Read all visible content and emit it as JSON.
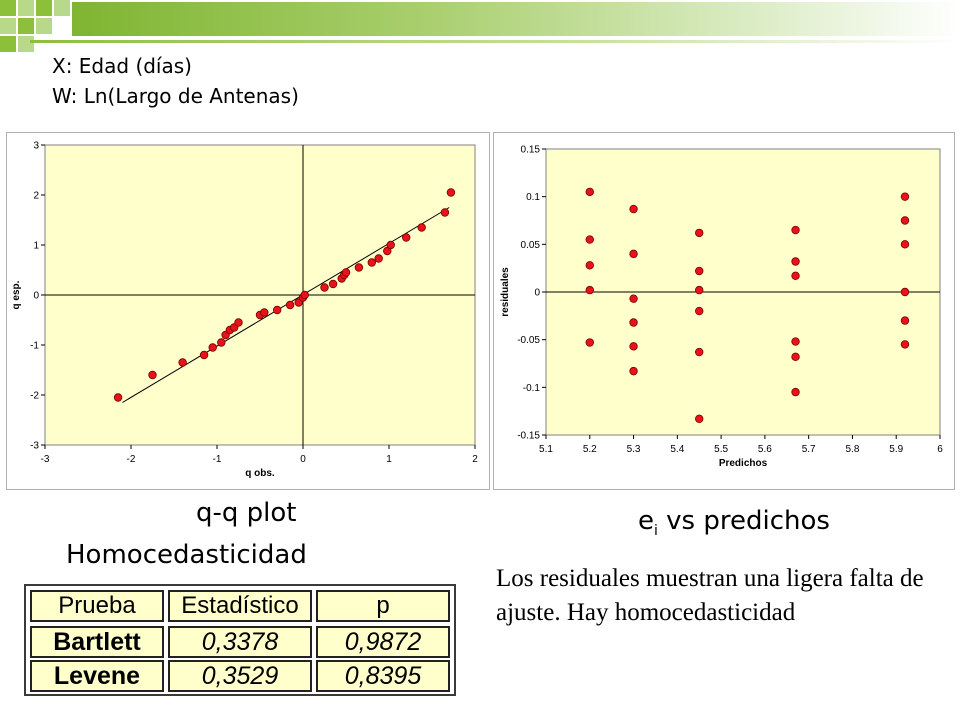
{
  "header": {
    "line1": "X: Edad (días)",
    "line2": "W: Ln(Largo de Antenas)"
  },
  "captions": {
    "qq": "q-q plot",
    "resid_main": "e",
    "resid_sub": "i",
    "resid_rest": " vs predichos",
    "homoc": "Homocedasticidad"
  },
  "body_text": "Los residuales muestran una ligera falta de ajuste. Hay homocedasticidad",
  "table": {
    "headers": [
      "Prueba",
      "Estadístico",
      "p"
    ],
    "rows": [
      [
        "Bartlett",
        "0,3378",
        "0,9872"
      ],
      [
        "Levene",
        "0,3529",
        "0,8395"
      ]
    ]
  },
  "colors": {
    "plot_bg": "#ffffcc",
    "point": "#e8121a",
    "header_squares": "#8cbf3a"
  },
  "chart_data": [
    {
      "type": "scatter",
      "title": "",
      "xlabel": "q obs.",
      "ylabel": "q esp.",
      "xlim": [
        -3,
        2
      ],
      "ylim": [
        -3,
        3
      ],
      "xticks": [
        "-3",
        "-2",
        "-1",
        "0",
        "1",
        "2"
      ],
      "yticks": [
        "-3",
        "-2",
        "-1",
        "0",
        "1",
        "2",
        "3"
      ],
      "grid": false,
      "reference_line": {
        "x": [
          -2.1,
          1.7
        ],
        "y": [
          -2.15,
          1.75
        ]
      },
      "points": {
        "x": [
          -2.15,
          -1.75,
          -1.4,
          -1.15,
          -1.05,
          -0.95,
          -0.9,
          -0.85,
          -0.8,
          -0.75,
          -0.5,
          -0.45,
          -0.3,
          -0.15,
          -0.05,
          0.0,
          0.02,
          0.25,
          0.35,
          0.45,
          0.48,
          0.5,
          0.65,
          0.8,
          0.88,
          0.98,
          1.02,
          1.2,
          1.38,
          1.65,
          1.72
        ],
        "y": [
          -2.05,
          -1.6,
          -1.35,
          -1.2,
          -1.05,
          -0.95,
          -0.8,
          -0.7,
          -0.65,
          -0.55,
          -0.4,
          -0.35,
          -0.3,
          -0.2,
          -0.15,
          -0.05,
          0.0,
          0.15,
          0.22,
          0.33,
          0.4,
          0.45,
          0.55,
          0.65,
          0.73,
          0.88,
          1.0,
          1.15,
          1.35,
          1.65,
          2.05
        ]
      }
    },
    {
      "type": "scatter",
      "title": "",
      "xlabel": "Predichos",
      "ylabel": "residuales",
      "xlim": [
        5.1,
        6
      ],
      "ylim": [
        -0.15,
        0.15
      ],
      "xticks": [
        "5.1",
        "5.2",
        "5.3",
        "5.4",
        "5.5",
        "5.6",
        "5.7",
        "5.8",
        "5.9",
        "6"
      ],
      "yticks": [
        "0.15",
        "0.1",
        "0.05",
        "0",
        "-0.05",
        "-0.1",
        "-0.15"
      ],
      "grid": false,
      "points": {
        "x": [
          5.2,
          5.2,
          5.2,
          5.2,
          5.2,
          5.3,
          5.3,
          5.3,
          5.3,
          5.3,
          5.3,
          5.45,
          5.45,
          5.45,
          5.45,
          5.45,
          5.45,
          5.67,
          5.67,
          5.67,
          5.67,
          5.67,
          5.67,
          5.92,
          5.92,
          5.92,
          5.92,
          5.92,
          5.92
        ],
        "y": [
          0.105,
          0.055,
          0.028,
          0.002,
          -0.053,
          0.087,
          0.04,
          -0.007,
          -0.032,
          -0.057,
          -0.083,
          0.062,
          0.022,
          0.002,
          -0.02,
          -0.063,
          -0.133,
          0.065,
          0.032,
          0.017,
          -0.052,
          -0.068,
          -0.105,
          0.1,
          0.075,
          0.05,
          0.0,
          -0.03,
          -0.055
        ]
      }
    }
  ]
}
